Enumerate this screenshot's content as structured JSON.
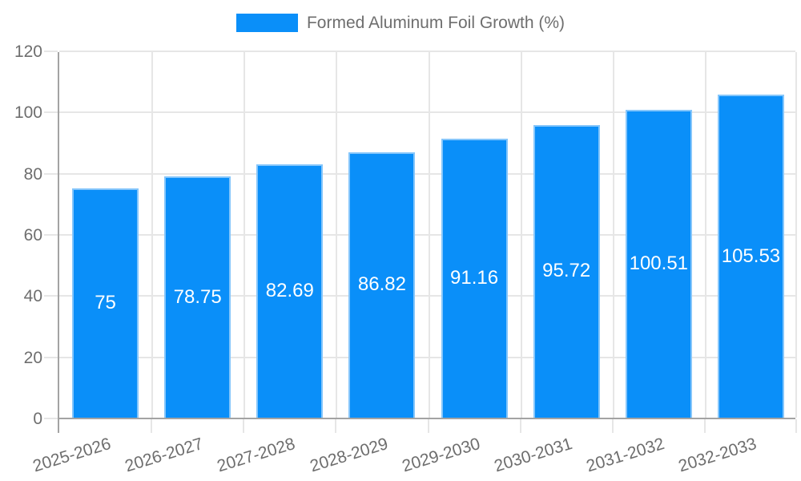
{
  "legend": {
    "label": "Formed Aluminum Foil Growth (%)"
  },
  "colors": {
    "bar": "#0a8ff9",
    "bar_border": "#85c6fb",
    "grid": "#e6e6e6",
    "axis_line": "#a3a3a3",
    "tick_text": "#6e6e6e",
    "data_label_text": "#ffffff"
  },
  "chart_data": {
    "type": "bar",
    "title": "",
    "series_name": "Formed Aluminum Foil Growth (%)",
    "categories": [
      "2025-2026",
      "2026-2027",
      "2027-2028",
      "2028-2029",
      "2029-2030",
      "2030-2031",
      "2031-2032",
      "2032-2033"
    ],
    "values": [
      75,
      78.75,
      82.69,
      86.82,
      91.16,
      95.72,
      100.51,
      105.53
    ],
    "data_labels": [
      "75",
      "78.75",
      "82.69",
      "86.82",
      "91.16",
      "95.72",
      "100.51",
      "105.53"
    ],
    "xlabel": "",
    "ylabel": "",
    "ylim": [
      0,
      120
    ],
    "yticks": [
      0,
      20,
      40,
      60,
      80,
      100,
      120
    ],
    "grid": "both",
    "legend_position": "top-center",
    "data_label_position": "center-inside"
  }
}
